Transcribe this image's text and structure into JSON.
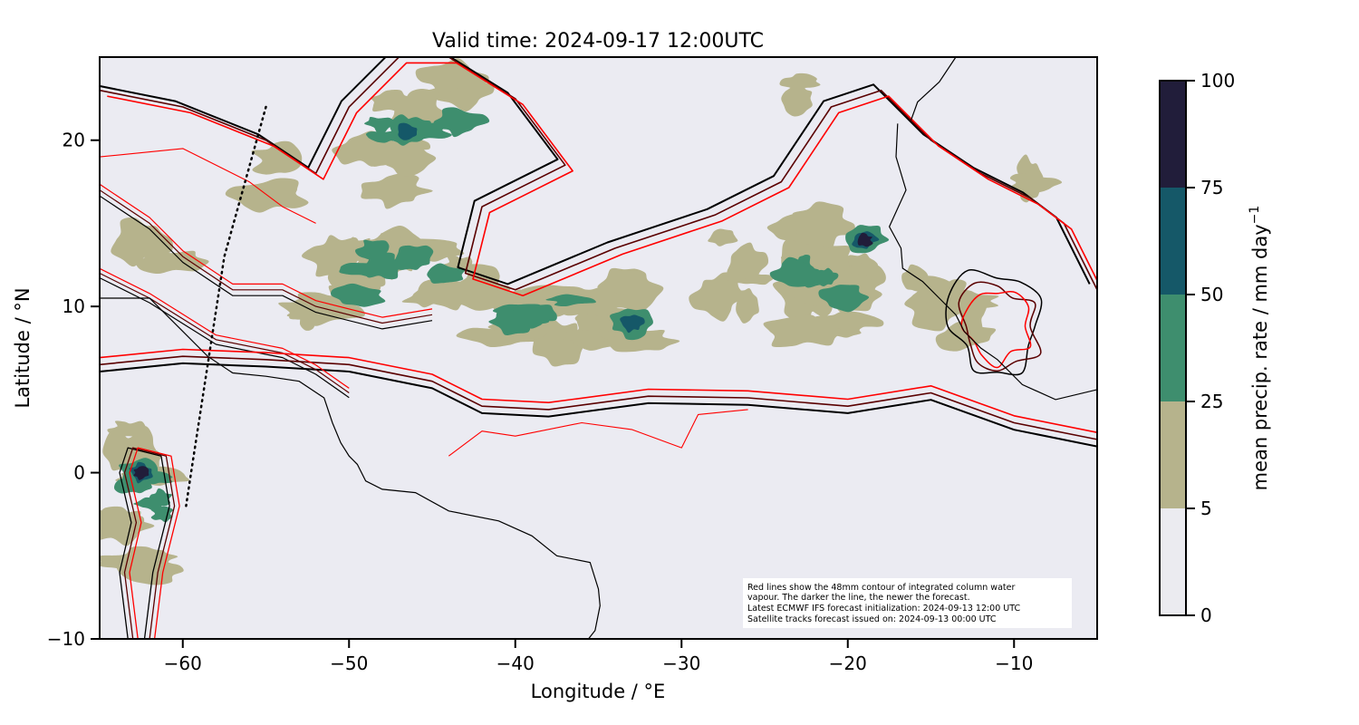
{
  "figure": {
    "title": "Valid time: 2024-09-17 12:00UTC",
    "xlabel": "Longitude / °E",
    "ylabel": "Latitude / °N",
    "annotation_lines": [
      "Red lines show the 48mm contour of integrated column water",
      "vapour. The darker the line, the newer the forecast.",
      "Latest ECMWF IFS forecast initialization: 2024-09-13 12:00 UTC",
      "Satellite tracks forecast issued on: 2024-09-13 00:00 UTC"
    ]
  },
  "axes": {
    "xlim": [
      -65,
      -5
    ],
    "ylim": [
      -10,
      25
    ],
    "xticks": [
      -60,
      -50,
      -40,
      -30,
      -20,
      -10
    ],
    "xtick_labels": [
      "−60",
      "−50",
      "−40",
      "−30",
      "−20",
      "−10"
    ],
    "yticks": [
      -10,
      0,
      10,
      20
    ],
    "ytick_labels": [
      "−10",
      "0",
      "10",
      "20"
    ]
  },
  "colorbar": {
    "label": "mean precip. rate / mm day",
    "label_superscript": "−1",
    "levels": [
      0,
      5,
      25,
      50,
      75,
      100
    ],
    "tick_labels": [
      "0",
      "5",
      "25",
      "50",
      "75",
      "100"
    ],
    "colors": [
      "#ebebf0",
      "#b6b38c",
      "#3e8e6e",
      "#155868",
      "#211d3a"
    ]
  },
  "colors": {
    "background": "#ebebf2",
    "coastline": "#000000",
    "contour_newest": "#000000",
    "contour_mid": "#5a0000",
    "contour_old": "#ff0000",
    "satellite_track": "#000000"
  },
  "precip_areas": [
    {
      "name": "north-atlantic-blob",
      "lon": -46,
      "lat": 20.5,
      "level": 2,
      "core": [
        -46.5,
        20.5,
        3
      ]
    },
    {
      "name": "west-itcz",
      "lon": -47,
      "lat": 12,
      "level": 2,
      "core": [
        -48,
        12.5,
        2
      ]
    },
    {
      "name": "central-itcz",
      "lon": -38,
      "lat": 10,
      "level": 2,
      "core": [
        -33,
        9,
        3
      ]
    },
    {
      "name": "east-itcz",
      "lon": -22,
      "lat": 11.5,
      "level": 2,
      "core": [
        -19,
        14,
        4
      ]
    },
    {
      "name": "west-africa-coast",
      "lon": -13,
      "lat": 9,
      "level": 1,
      "core": null
    },
    {
      "name": "amazon-delta",
      "lon": -62.5,
      "lat": -1.5,
      "level": 2,
      "core": [
        -62.5,
        0,
        4
      ]
    }
  ],
  "contour_series": [
    {
      "label": "newest",
      "color": "#000000"
    },
    {
      "label": "mid",
      "color": "#5a0000"
    },
    {
      "label": "oldest",
      "color": "#ff0000"
    }
  ],
  "satellite_track": {
    "points": [
      [
        -55,
        22
      ],
      [
        -57.5,
        13
      ],
      [
        -59.5,
        0
      ],
      [
        -59.8,
        -2
      ]
    ]
  },
  "coastlines": {
    "south_america": [
      [
        -65,
        10.5
      ],
      [
        -62,
        10.5
      ],
      [
        -61,
        9.5
      ],
      [
        -60,
        8.5
      ],
      [
        -58.5,
        7
      ],
      [
        -57,
        6
      ],
      [
        -55,
        5.8
      ],
      [
        -53,
        5.5
      ],
      [
        -51.5,
        4.5
      ],
      [
        -51,
        3
      ],
      [
        -50.5,
        1.8
      ],
      [
        -50,
        1
      ],
      [
        -49.5,
        0.5
      ],
      [
        -49,
        -0.5
      ],
      [
        -48,
        -1
      ],
      [
        -46,
        -1.2
      ],
      [
        -44,
        -2.3
      ],
      [
        -41,
        -2.9
      ],
      [
        -39,
        -3.8
      ],
      [
        -37.5,
        -5
      ],
      [
        -35.5,
        -5.4
      ],
      [
        -35,
        -7
      ],
      [
        -34.9,
        -8
      ],
      [
        -35.2,
        -9.5
      ],
      [
        -35.6,
        -10
      ]
    ],
    "west_africa": [
      [
        -17,
        21
      ],
      [
        -17.1,
        19
      ],
      [
        -16.5,
        17
      ],
      [
        -17.5,
        14.8
      ],
      [
        -16.8,
        13.5
      ],
      [
        -16.7,
        12.3
      ],
      [
        -15.5,
        11.5
      ],
      [
        -14.5,
        10.5
      ],
      [
        -13.5,
        9.5
      ],
      [
        -13,
        8.5
      ],
      [
        -12,
        7.5
      ],
      [
        -11,
        6.8
      ],
      [
        -9.5,
        5.3
      ],
      [
        -7.5,
        4.4
      ],
      [
        -5,
        5
      ]
    ],
    "sahara_north": [
      [
        -13.5,
        25
      ],
      [
        -14.5,
        23.5
      ],
      [
        -15.8,
        22.3
      ],
      [
        -16.2,
        21.2
      ]
    ]
  }
}
